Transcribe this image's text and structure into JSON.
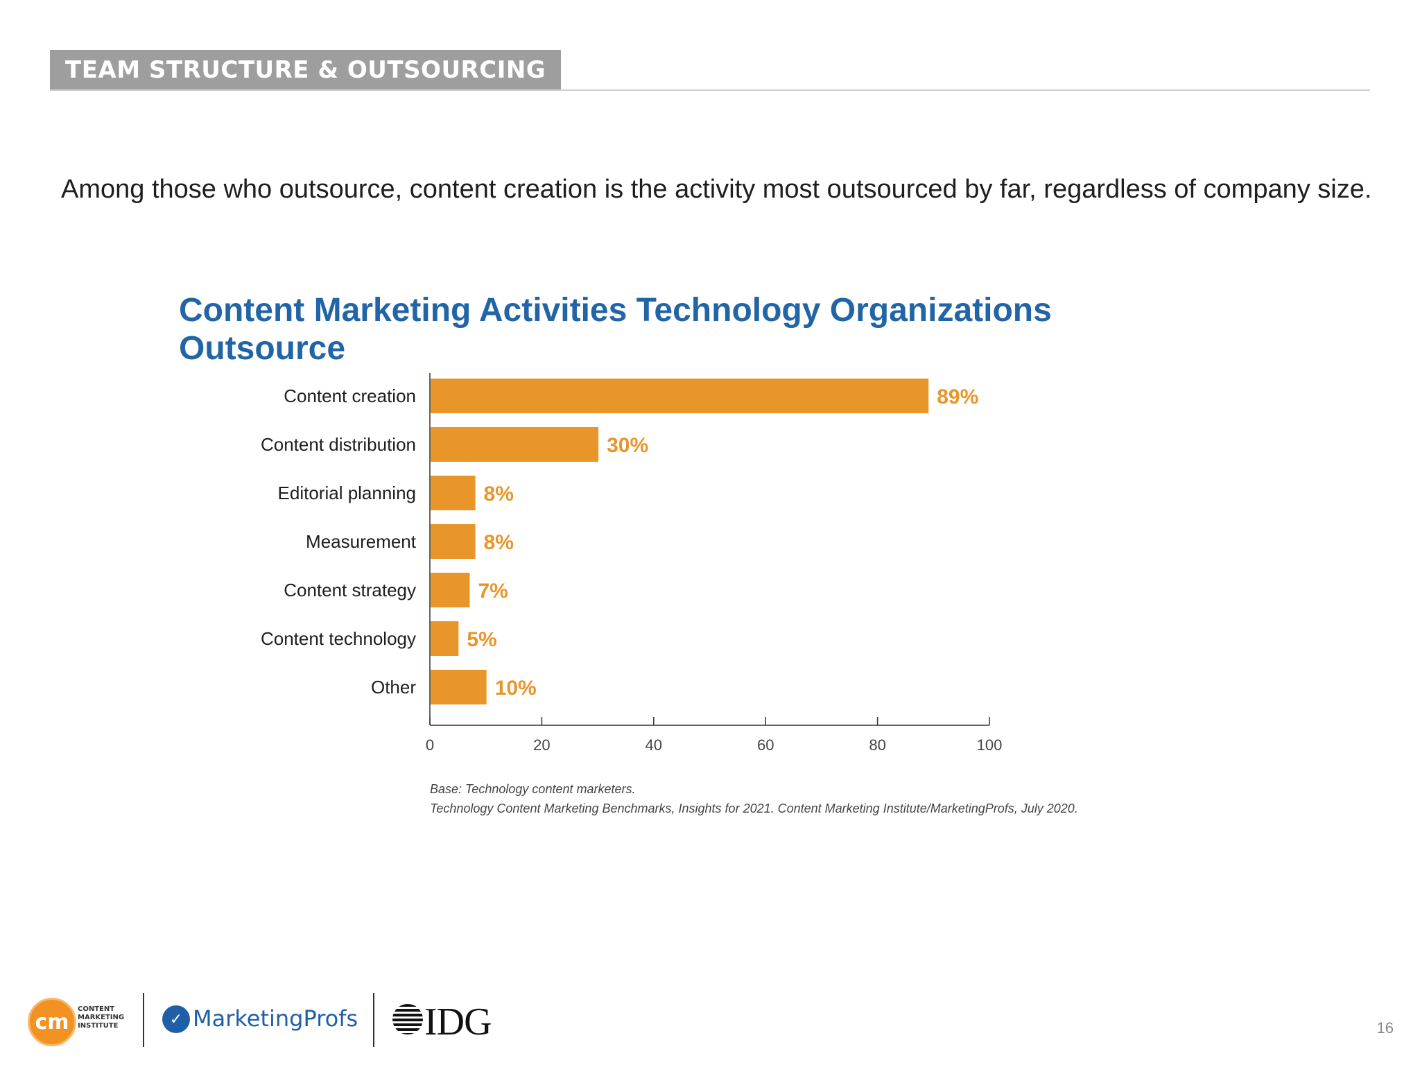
{
  "section_label": "TEAM STRUCTURE & OUTSOURCING",
  "subtitle": "Among those who outsource, content creation is the activity most outsourced by far, regardless of company size.",
  "chart_data": {
    "type": "bar",
    "orientation": "horizontal",
    "title": "Content Marketing Activities Technology Organizations Outsource",
    "categories": [
      "Content creation",
      "Content distribution",
      "Editorial planning",
      "Measurement",
      "Content strategy",
      "Content technology",
      "Other"
    ],
    "values": [
      89,
      30,
      8,
      8,
      7,
      5,
      10
    ],
    "value_labels": [
      "89%",
      "30%",
      "8%",
      "8%",
      "7%",
      "5%",
      "10%"
    ],
    "xlim": [
      0,
      100
    ],
    "xticks": [
      "0",
      "20",
      "40",
      "60",
      "80",
      "100"
    ],
    "xlabel": "",
    "ylabel": "",
    "bar_color": "#e8952a",
    "label_color": "#e8952a",
    "grid": false,
    "legend": "none"
  },
  "footnotes": {
    "base": "Base: Technology content marketers.",
    "source": "Technology Content Marketing Benchmarks, Insights for 2021. Content Marketing Institute/MarketingProfs, July 2020."
  },
  "logos": {
    "cmi_mark": "cm",
    "cmi_line1": "CONTENT",
    "cmi_line2": "MARKETING",
    "cmi_line3": "INSTITUTE",
    "marketingprofs": "MarketingProfs",
    "idg": "IDG"
  },
  "page_number": "16",
  "colors": {
    "title_blue": "#2265a7",
    "banner_gray": "#9e9e9e",
    "bar_orange": "#e8952a"
  }
}
